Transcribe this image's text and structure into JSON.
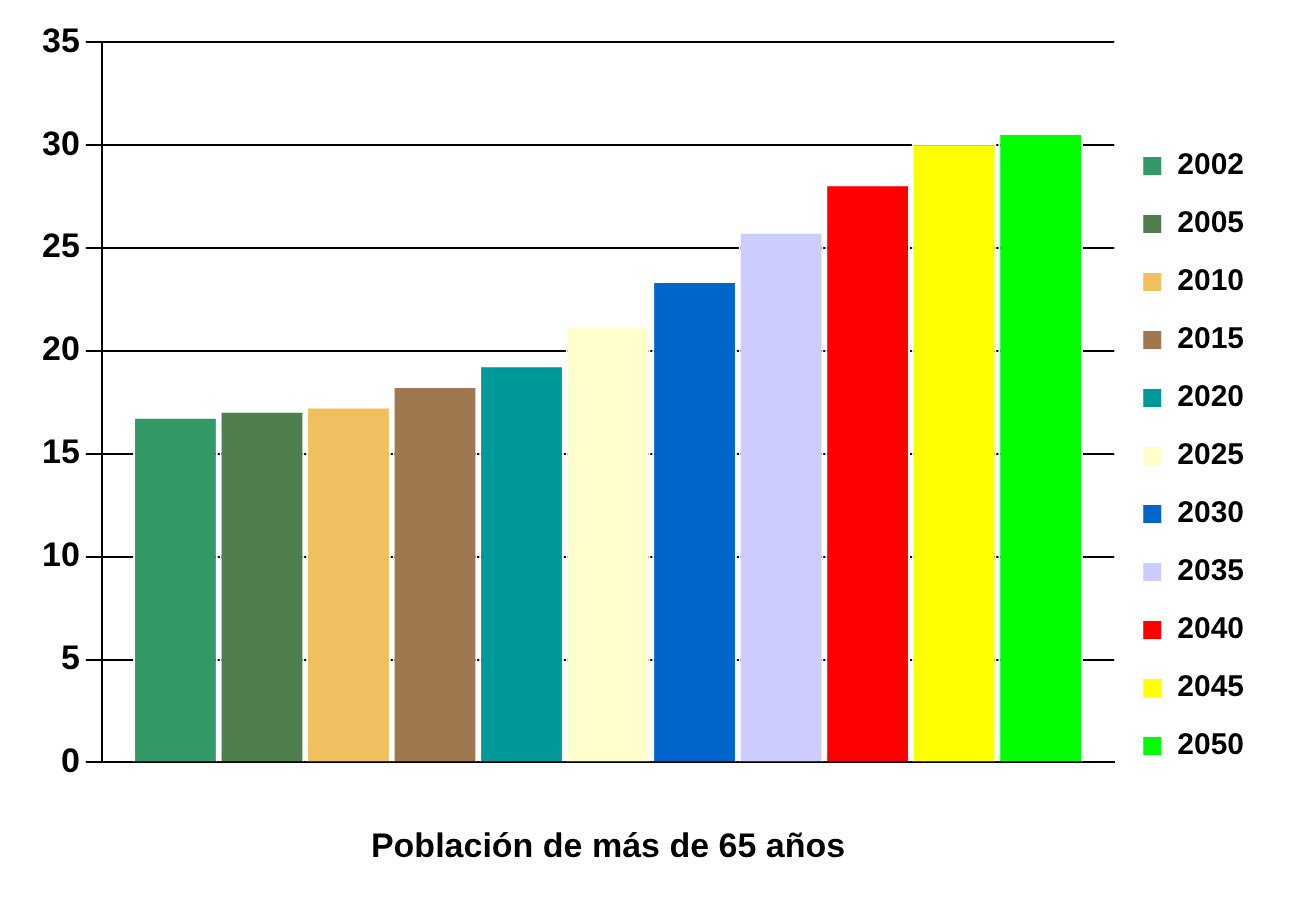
{
  "chart_data": {
    "type": "bar",
    "xlabel": "Población de más de 65 años",
    "categories": [
      null
    ],
    "series": [
      {
        "name": "2002",
        "color": "#339966",
        "values": [
          16.8
        ]
      },
      {
        "name": "2005",
        "color": "#4f7f4f",
        "values": [
          17.1
        ]
      },
      {
        "name": "2010",
        "color": "#f0c060",
        "values": [
          17.3
        ]
      },
      {
        "name": "2015",
        "color": "#a07850",
        "values": [
          18.3
        ]
      },
      {
        "name": "2020",
        "color": "#009999",
        "values": [
          19.3
        ]
      },
      {
        "name": "2025",
        "color": "#ffffcc",
        "values": [
          21.2
        ]
      },
      {
        "name": "2030",
        "color": "#0066cc",
        "values": [
          23.4
        ]
      },
      {
        "name": "2035",
        "color": "#ccccff",
        "values": [
          25.8
        ]
      },
      {
        "name": "2040",
        "color": "#ff0000",
        "values": [
          28.1
        ]
      },
      {
        "name": "2045",
        "color": "#ffff00",
        "values": [
          30.1
        ]
      },
      {
        "name": "2050",
        "color": "#00ff00",
        "values": [
          30.6
        ]
      }
    ],
    "ylim": [
      0,
      35
    ],
    "yticks": [
      0,
      5,
      10,
      15,
      20,
      25,
      30,
      35
    ],
    "grid": "y",
    "legend": "right"
  }
}
